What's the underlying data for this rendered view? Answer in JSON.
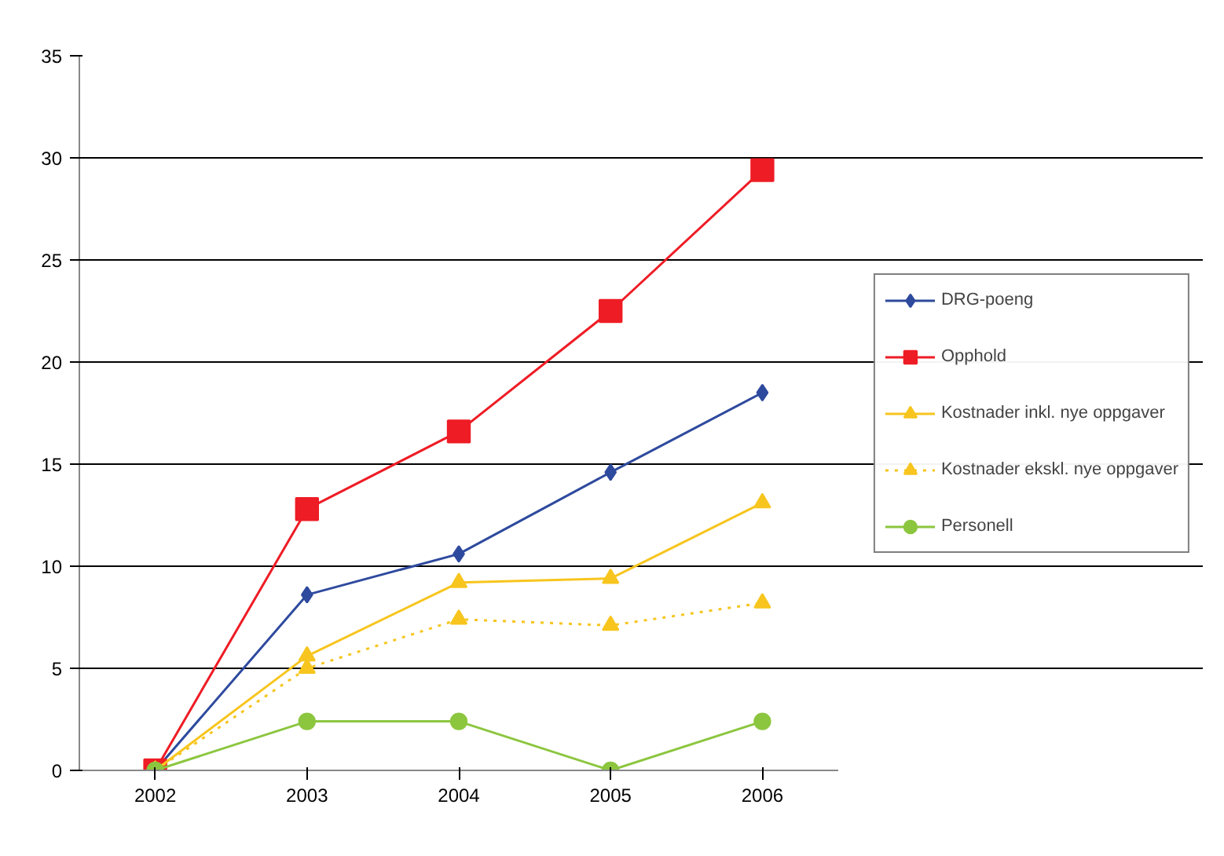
{
  "chart_data": {
    "type": "line",
    "categories": [
      "2002",
      "2003",
      "2004",
      "2005",
      "2006"
    ],
    "ylim": [
      0,
      35
    ],
    "yticks": [
      0,
      5,
      10,
      15,
      20,
      25,
      30,
      35
    ],
    "grid": "y",
    "legend": "right",
    "series": [
      {
        "name": "DRG-poeng",
        "color": "#2e4a9e",
        "marker": "diamond",
        "line_style": "solid",
        "values": [
          0,
          8.6,
          10.6,
          14.6,
          18.5
        ]
      },
      {
        "name": "Opphold",
        "color": "#ee1c25",
        "marker": "square",
        "line_style": "solid",
        "values": [
          0,
          12.8,
          16.6,
          22.5,
          29.4
        ]
      },
      {
        "name": "Kostnader inkl. nye oppgaver",
        "color": "#f7c51e",
        "marker": "triangle",
        "line_style": "solid",
        "values": [
          0,
          5.6,
          9.2,
          9.4,
          13.1
        ]
      },
      {
        "name": "Kostnader ekskl. nye oppgaver",
        "color": "#f7c51e",
        "marker": "triangle",
        "line_style": "dotted",
        "values": [
          0,
          5.0,
          7.4,
          7.1,
          8.2
        ]
      },
      {
        "name": "Personell",
        "color": "#8cc63f",
        "marker": "circle",
        "line_style": "solid",
        "values": [
          0,
          2.4,
          2.4,
          0,
          2.4
        ]
      }
    ]
  }
}
